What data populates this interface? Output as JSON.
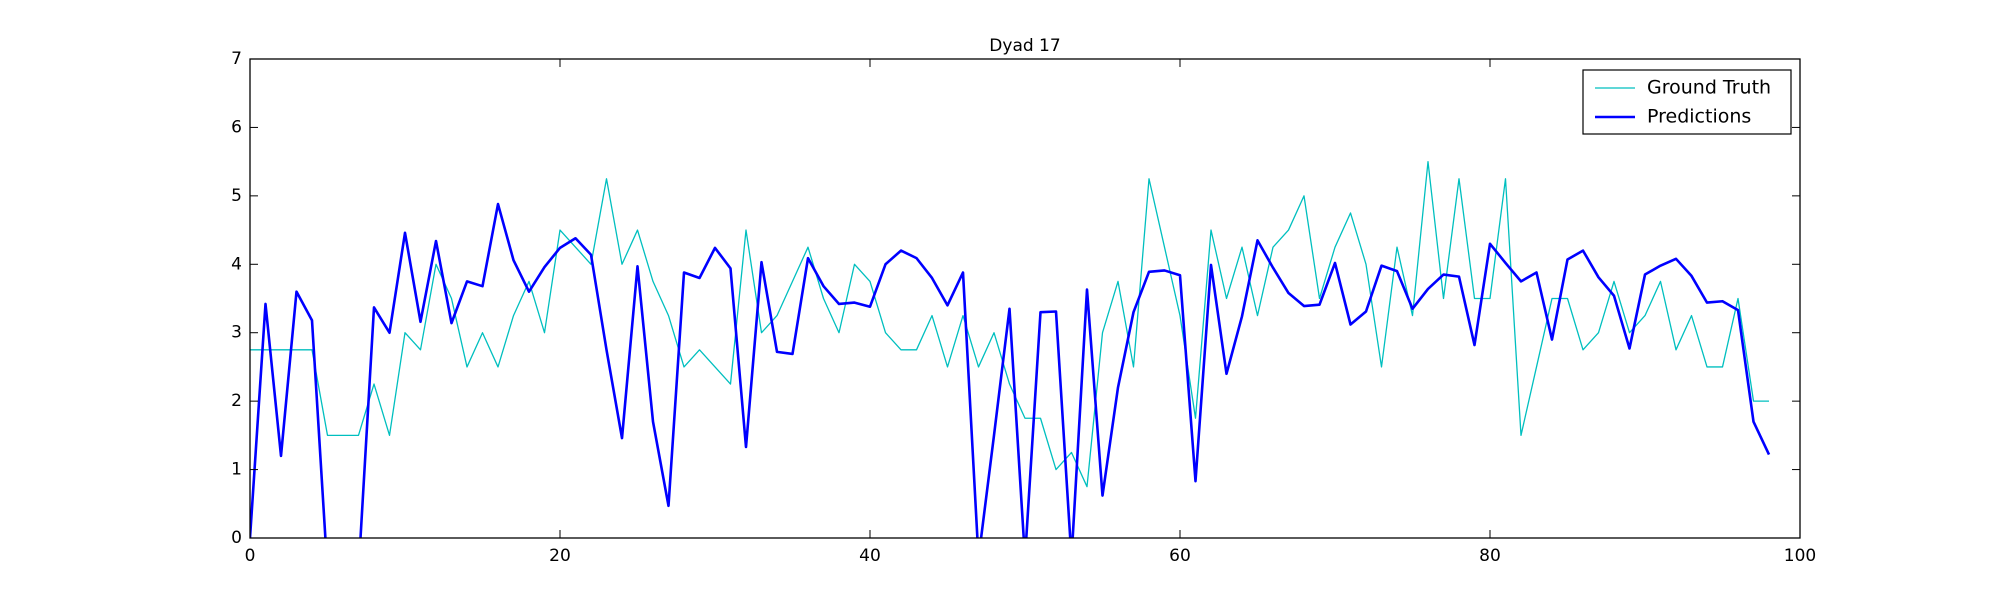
{
  "chart_data": {
    "type": "line",
    "title": "Dyad 17",
    "x": [
      0,
      1,
      2,
      3,
      4,
      5,
      6,
      7,
      8,
      9,
      10,
      11,
      12,
      13,
      14,
      15,
      16,
      17,
      18,
      19,
      20,
      21,
      22,
      23,
      24,
      25,
      26,
      27,
      28,
      29,
      30,
      31,
      32,
      33,
      34,
      35,
      36,
      37,
      38,
      39,
      40,
      41,
      42,
      43,
      44,
      45,
      46,
      47,
      48,
      49,
      50,
      51,
      52,
      53,
      54,
      55,
      56,
      57,
      58,
      59,
      60,
      61,
      62,
      63,
      64,
      65,
      66,
      67,
      68,
      69,
      70,
      71,
      72,
      73,
      74,
      75,
      76,
      77,
      78,
      79,
      80,
      81,
      82,
      83,
      84,
      85,
      86,
      87,
      88,
      89,
      90,
      91,
      92,
      93,
      94,
      95,
      96,
      97,
      98
    ],
    "series": [
      {
        "name": "Ground Truth",
        "color": "#00bfbf",
        "width": 1.3,
        "values": [
          2.75,
          2.75,
          2.75,
          2.75,
          2.75,
          1.5,
          1.5,
          1.5,
          2.25,
          1.5,
          3,
          2.75,
          4,
          3.5,
          2.5,
          3,
          2.5,
          3.25,
          3.75,
          3,
          4.5,
          4.25,
          4,
          5.25,
          4,
          4.5,
          3.75,
          3.25,
          2.5,
          2.75,
          2.5,
          2.25,
          4.5,
          3,
          3.25,
          3.75,
          4.25,
          3.5,
          3,
          4,
          3.75,
          3,
          2.75,
          2.75,
          3.25,
          2.5,
          3.25,
          2.5,
          3,
          2.25,
          1.75,
          1.75,
          1,
          1.25,
          0.75,
          3,
          3.75,
          2.5,
          5.25,
          4.25,
          3.25,
          1.75,
          4.5,
          3.5,
          4.25,
          3.25,
          4.25,
          4.5,
          5,
          3.5,
          4.25,
          4.75,
          4,
          2.5,
          4.25,
          3.25,
          5.5,
          3.5,
          5.25,
          3.5,
          3.5,
          5.25,
          1.5,
          2.5,
          3.5,
          3.5,
          2.75,
          3,
          3.75,
          3,
          3.25,
          3.75,
          2.75,
          3.25,
          2.5,
          2.5,
          3.5,
          2,
          2
        ]
      },
      {
        "name": "Predictions",
        "color": "#0000ff",
        "width": 2.6,
        "values": [
          0,
          3.42,
          1.2,
          3.6,
          3.18,
          -0.5,
          -0.5,
          -0.5,
          3.37,
          3.0,
          4.46,
          3.16,
          4.34,
          3.14,
          3.75,
          3.68,
          4.88,
          4.06,
          3.6,
          3.96,
          4.24,
          4.38,
          4.14,
          2.75,
          1.46,
          3.97,
          1.7,
          0.47,
          3.88,
          3.8,
          4.24,
          3.94,
          1.33,
          4.03,
          2.72,
          2.69,
          4.09,
          3.68,
          3.42,
          3.44,
          3.38,
          4.0,
          4.2,
          4.09,
          3.8,
          3.4,
          3.88,
          -0.3,
          1.5,
          3.35,
          -0.3,
          3.3,
          3.31,
          -0.3,
          3.63,
          0.62,
          2.2,
          3.3,
          3.89,
          3.91,
          3.84,
          0.83,
          3.99,
          2.4,
          3.24,
          4.35,
          3.95,
          3.58,
          3.39,
          3.41,
          4.02,
          3.12,
          3.31,
          3.98,
          3.9,
          3.35,
          3.64,
          3.85,
          3.82,
          2.82,
          4.3,
          4.02,
          3.75,
          3.88,
          2.9,
          4.07,
          4.2,
          3.81,
          3.54,
          2.77,
          3.85,
          3.98,
          4.08,
          3.83,
          3.44,
          3.46,
          3.33,
          1.7,
          1.22
        ]
      }
    ],
    "xlim": [
      0,
      100
    ],
    "xticks": [
      0,
      20,
      40,
      60,
      80,
      100
    ],
    "ylim": [
      0,
      7
    ],
    "yticks": [
      0,
      1,
      2,
      3,
      4,
      5,
      6,
      7
    ],
    "legend": "upper right"
  }
}
